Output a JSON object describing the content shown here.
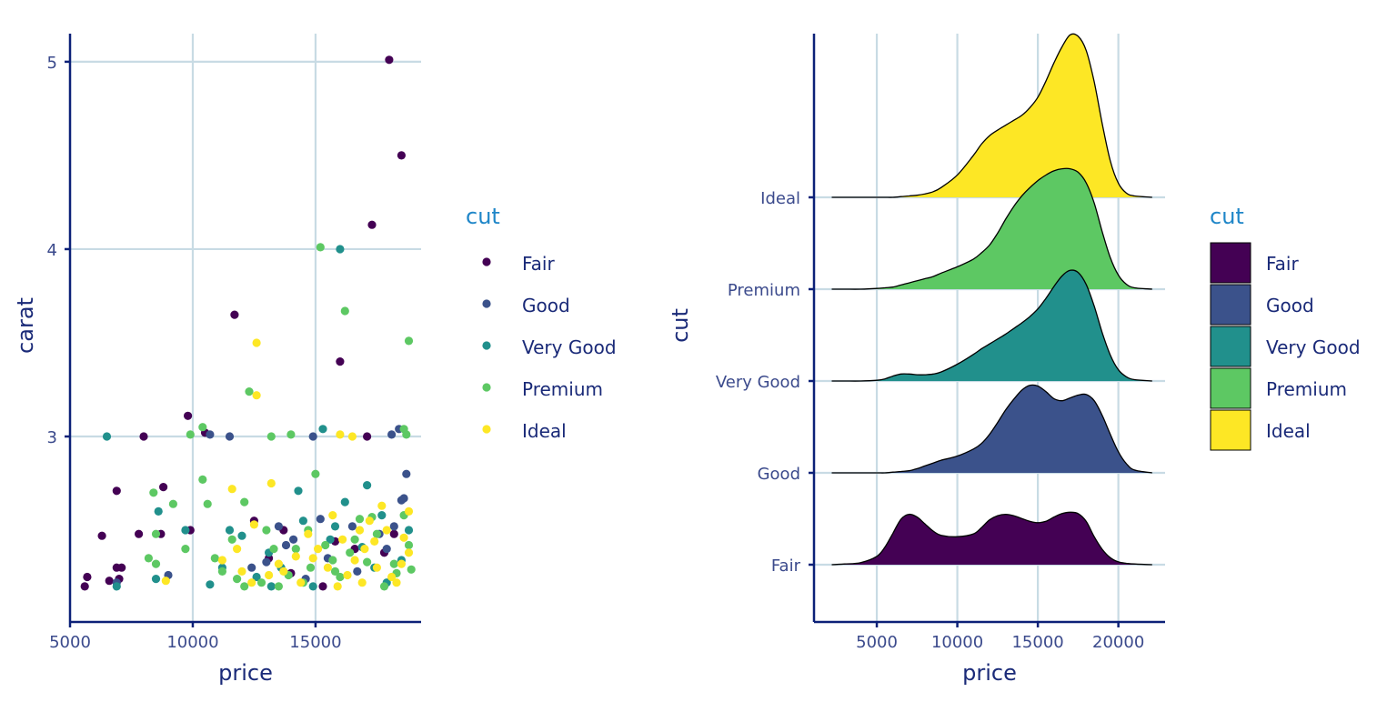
{
  "colors": {
    "Fair": "#440154",
    "Good": "#3b528b",
    "Very Good": "#21908c",
    "Premium": "#5dc863",
    "Ideal": "#fde725",
    "grid": "#c8dbe4",
    "axis": "#0c2178",
    "tick_text": "#3b4a8c",
    "legend_title": "#1f86c8"
  },
  "chart_data": [
    {
      "type": "scatter",
      "title": "",
      "xlabel": "price",
      "ylabel": "carat",
      "xlim": [
        5000,
        19300
      ],
      "ylim": [
        2.01,
        5.15
      ],
      "x_ticks": [
        "5000",
        "10000",
        "15000"
      ],
      "y_ticks": [
        "3",
        "4",
        "5"
      ],
      "legend": {
        "title": "cut",
        "entries": [
          "Fair",
          "Good",
          "Very Good",
          "Premium",
          "Ideal"
        ],
        "placement": "right"
      },
      "series": [
        {
          "name": "Fair",
          "points": [
            [
              18000,
              5.01
            ],
            [
              18500,
              4.5
            ],
            [
              17300,
              4.13
            ],
            [
              11700,
              3.65
            ],
            [
              16000,
              3.4
            ],
            [
              9800,
              3.11
            ],
            [
              10500,
              3.02
            ],
            [
              8000,
              3.0
            ],
            [
              17100,
              3.0
            ],
            [
              6900,
              2.71
            ],
            [
              8800,
              2.73
            ],
            [
              9900,
              2.5
            ],
            [
              7800,
              2.48
            ],
            [
              8700,
              2.48
            ],
            [
              6300,
              2.47
            ],
            [
              12500,
              2.55
            ],
            [
              13700,
              2.5
            ],
            [
              15800,
              2.44
            ],
            [
              7100,
              2.3
            ],
            [
              6900,
              2.3
            ],
            [
              5700,
              2.25
            ],
            [
              6600,
              2.23
            ],
            [
              5600,
              2.2
            ],
            [
              7000,
              2.24
            ],
            [
              14000,
              2.27
            ],
            [
              16600,
              2.4
            ],
            [
              18200,
              2.48
            ],
            [
              17800,
              2.38
            ],
            [
              13100,
              2.35
            ],
            [
              15300,
              2.2
            ]
          ]
        },
        {
          "name": "Good",
          "points": [
            [
              10700,
              3.01
            ],
            [
              11500,
              3.0
            ],
            [
              14900,
              3.0
            ],
            [
              18100,
              3.01
            ],
            [
              18400,
              3.04
            ],
            [
              18700,
              2.8
            ],
            [
              18600,
              2.67
            ],
            [
              18500,
              2.66
            ],
            [
              17600,
              2.48
            ],
            [
              16500,
              2.52
            ],
            [
              15200,
              2.56
            ],
            [
              14100,
              2.45
            ],
            [
              13500,
              2.52
            ],
            [
              12400,
              2.3
            ],
            [
              13000,
              2.33
            ],
            [
              9000,
              2.26
            ],
            [
              6900,
              2.22
            ],
            [
              15500,
              2.35
            ],
            [
              16700,
              2.28
            ],
            [
              17900,
              2.4
            ],
            [
              18200,
              2.52
            ],
            [
              14600,
              2.24
            ],
            [
              13800,
              2.42
            ]
          ]
        },
        {
          "name": "Very Good",
          "points": [
            [
              6500,
              3.0
            ],
            [
              8600,
              2.6
            ],
            [
              9700,
              2.5
            ],
            [
              14300,
              2.71
            ],
            [
              16200,
              2.65
            ],
            [
              17100,
              2.74
            ],
            [
              17700,
              2.58
            ],
            [
              15800,
              2.52
            ],
            [
              13100,
              2.38
            ],
            [
              12000,
              2.47
            ],
            [
              11500,
              2.5
            ],
            [
              10700,
              2.21
            ],
            [
              8500,
              2.24
            ],
            [
              6900,
              2.2
            ],
            [
              15300,
              3.04
            ],
            [
              16000,
              4.0
            ],
            [
              14500,
              2.55
            ],
            [
              13600,
              2.3
            ],
            [
              17400,
              2.3
            ],
            [
              18500,
              2.34
            ],
            [
              18800,
              2.5
            ],
            [
              16900,
              2.41
            ],
            [
              12600,
              2.25
            ],
            [
              11200,
              2.3
            ],
            [
              14900,
              2.2
            ],
            [
              17900,
              2.22
            ],
            [
              15600,
              2.45
            ],
            [
              13200,
              2.2
            ]
          ]
        },
        {
          "name": "Premium",
          "points": [
            [
              15200,
              4.01
            ],
            [
              16200,
              3.67
            ],
            [
              18800,
              3.51
            ],
            [
              12300,
              3.24
            ],
            [
              18600,
              3.04
            ],
            [
              18700,
              3.01
            ],
            [
              14000,
              3.01
            ],
            [
              13200,
              3.0
            ],
            [
              10400,
              3.05
            ],
            [
              9900,
              3.01
            ],
            [
              15000,
              2.8
            ],
            [
              10400,
              2.77
            ],
            [
              9200,
              2.64
            ],
            [
              10600,
              2.64
            ],
            [
              8400,
              2.7
            ],
            [
              12100,
              2.65
            ],
            [
              8500,
              2.48
            ],
            [
              9700,
              2.4
            ],
            [
              8200,
              2.35
            ],
            [
              8500,
              2.32
            ],
            [
              11200,
              2.28
            ],
            [
              11600,
              2.45
            ],
            [
              13000,
              2.5
            ],
            [
              14200,
              2.4
            ],
            [
              15800,
              2.28
            ],
            [
              16400,
              2.38
            ],
            [
              17100,
              2.33
            ],
            [
              18300,
              2.27
            ],
            [
              18800,
              2.42
            ],
            [
              16800,
              2.56
            ],
            [
              14700,
              2.5
            ],
            [
              13500,
              2.2
            ],
            [
              12100,
              2.2
            ],
            [
              10900,
              2.35
            ],
            [
              11800,
              2.24
            ],
            [
              13900,
              2.26
            ],
            [
              14500,
              2.22
            ],
            [
              15700,
              2.34
            ],
            [
              16600,
              2.45
            ],
            [
              17500,
              2.48
            ],
            [
              18600,
              2.58
            ],
            [
              18200,
              2.32
            ],
            [
              17800,
              2.2
            ],
            [
              16000,
              2.25
            ],
            [
              15400,
              2.42
            ],
            [
              14800,
              2.3
            ],
            [
              13300,
              2.4
            ],
            [
              12800,
              2.22
            ],
            [
              18900,
              2.29
            ],
            [
              17300,
              2.57
            ]
          ]
        },
        {
          "name": "Ideal",
          "points": [
            [
              12600,
              3.5
            ],
            [
              12600,
              3.22
            ],
            [
              16000,
              3.01
            ],
            [
              16500,
              3.0
            ],
            [
              13200,
              2.75
            ],
            [
              11600,
              2.72
            ],
            [
              17700,
              2.63
            ],
            [
              16800,
              2.5
            ],
            [
              15700,
              2.58
            ],
            [
              14700,
              2.48
            ],
            [
              12500,
              2.53
            ],
            [
              11800,
              2.4
            ],
            [
              11200,
              2.34
            ],
            [
              8900,
              2.23
            ],
            [
              12400,
              2.22
            ],
            [
              13700,
              2.28
            ],
            [
              14900,
              2.35
            ],
            [
              15500,
              2.3
            ],
            [
              16300,
              2.26
            ],
            [
              17000,
              2.4
            ],
            [
              17500,
              2.3
            ],
            [
              18100,
              2.25
            ],
            [
              18600,
              2.46
            ],
            [
              18800,
              2.38
            ],
            [
              18300,
              2.22
            ],
            [
              17200,
              2.55
            ],
            [
              16100,
              2.45
            ],
            [
              15100,
              2.4
            ],
            [
              14200,
              2.36
            ],
            [
              13100,
              2.26
            ],
            [
              12000,
              2.28
            ],
            [
              18800,
              2.6
            ],
            [
              17900,
              2.5
            ],
            [
              16600,
              2.34
            ],
            [
              15900,
              2.2
            ],
            [
              14400,
              2.22
            ],
            [
              13500,
              2.32
            ],
            [
              17400,
              2.44
            ],
            [
              18500,
              2.32
            ],
            [
              16900,
              2.22
            ]
          ]
        }
      ]
    },
    {
      "type": "area",
      "subtype": "ridgeline",
      "title": "",
      "xlabel": "price",
      "ylabel": "cut",
      "xlim": [
        1100,
        22900
      ],
      "x_ticks": [
        "5000",
        "10000",
        "15000",
        "20000"
      ],
      "categories": [
        "Fair",
        "Good",
        "Very Good",
        "Premium",
        "Ideal"
      ],
      "legend": {
        "title": "cut",
        "entries": [
          "Fair",
          "Good",
          "Very Good",
          "Premium",
          "Ideal"
        ],
        "placement": "right"
      },
      "x": [
        2200,
        3000,
        4000,
        5000,
        5500,
        6000,
        6500,
        7000,
        7500,
        8000,
        8500,
        9000,
        10000,
        11000,
        11500,
        12000,
        12500,
        13000,
        13500,
        14000,
        14500,
        15000,
        15500,
        16000,
        16500,
        17000,
        17500,
        18000,
        18500,
        19000,
        19500,
        20000,
        20500,
        21000,
        22100
      ],
      "series": [
        {
          "name": "Fair",
          "density": [
            0,
            0.01,
            0.03,
            0.12,
            0.25,
            0.45,
            0.65,
            0.72,
            0.68,
            0.58,
            0.48,
            0.42,
            0.4,
            0.44,
            0.53,
            0.64,
            0.7,
            0.72,
            0.7,
            0.66,
            0.62,
            0.6,
            0.62,
            0.68,
            0.73,
            0.75,
            0.73,
            0.62,
            0.4,
            0.22,
            0.1,
            0.04,
            0.02,
            0.01,
            0
          ]
        },
        {
          "name": "Good",
          "density": [
            0,
            0,
            0,
            0,
            0,
            0.01,
            0.02,
            0.03,
            0.06,
            0.1,
            0.14,
            0.18,
            0.24,
            0.34,
            0.42,
            0.55,
            0.72,
            0.9,
            1.05,
            1.18,
            1.25,
            1.24,
            1.16,
            1.06,
            1.03,
            1.07,
            1.11,
            1.12,
            1.03,
            0.82,
            0.55,
            0.3,
            0.13,
            0.04,
            0
          ]
        },
        {
          "name": "Very Good",
          "density": [
            0,
            0,
            0,
            0.01,
            0.03,
            0.07,
            0.1,
            0.1,
            0.09,
            0.09,
            0.1,
            0.13,
            0.24,
            0.38,
            0.46,
            0.53,
            0.6,
            0.67,
            0.75,
            0.83,
            0.92,
            1.03,
            1.18,
            1.35,
            1.5,
            1.58,
            1.55,
            1.38,
            1.07,
            0.69,
            0.37,
            0.16,
            0.06,
            0.02,
            0
          ]
        },
        {
          "name": "Premium",
          "density": [
            0,
            0,
            0,
            0.01,
            0.02,
            0.03,
            0.06,
            0.09,
            0.12,
            0.15,
            0.18,
            0.23,
            0.32,
            0.43,
            0.52,
            0.63,
            0.8,
            1.0,
            1.18,
            1.33,
            1.45,
            1.55,
            1.63,
            1.69,
            1.72,
            1.72,
            1.67,
            1.52,
            1.23,
            0.82,
            0.45,
            0.2,
            0.07,
            0.02,
            0
          ]
        },
        {
          "name": "Ideal",
          "density": [
            0,
            0,
            0,
            0,
            0,
            0,
            0.01,
            0.02,
            0.03,
            0.05,
            0.08,
            0.14,
            0.32,
            0.6,
            0.76,
            0.88,
            0.96,
            1.03,
            1.1,
            1.17,
            1.28,
            1.43,
            1.66,
            1.92,
            2.15,
            2.32,
            2.3,
            2.1,
            1.65,
            1.05,
            0.52,
            0.2,
            0.06,
            0.02,
            0
          ]
        }
      ]
    }
  ]
}
